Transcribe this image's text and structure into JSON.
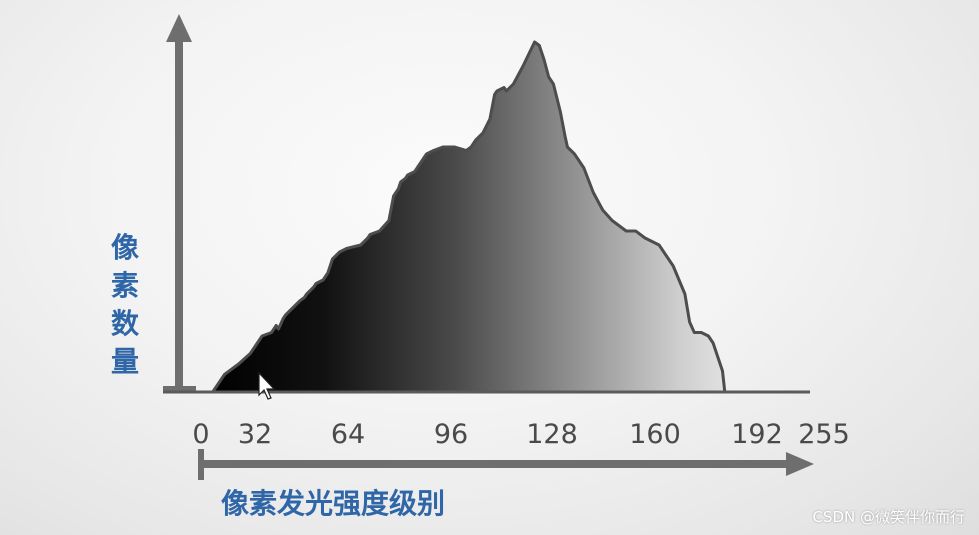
{
  "chart_data": {
    "type": "area",
    "ylabel": "像素数量",
    "xlabel": "像素发光强度级别",
    "tick_labels": [
      "0",
      "32",
      "64",
      "96",
      "128",
      "160",
      "192",
      "255"
    ],
    "xlim": [
      0,
      255
    ],
    "ylim": [
      0,
      100
    ],
    "grid": false,
    "fill": "gradient black to white",
    "x": [
      5,
      10,
      16,
      21,
      23,
      25,
      26,
      30,
      32,
      33,
      35,
      36,
      42,
      44,
      45,
      48,
      49,
      52,
      54,
      56,
      59,
      62,
      68,
      71,
      72,
      76,
      80,
      82,
      84,
      85,
      87,
      88,
      91,
      92,
      96,
      99,
      103,
      108,
      113,
      115,
      117,
      120,
      123,
      125,
      126,
      129,
      130,
      133,
      137,
      142,
      144,
      146,
      148,
      150,
      153,
      155,
      156,
      159,
      163,
      167,
      171,
      175,
      177,
      181,
      185,
      189,
      195,
      201,
      206,
      208,
      210,
      213,
      216,
      218,
      222,
      223
    ],
    "y": [
      0,
      5,
      8,
      11,
      13,
      15,
      16,
      17,
      19,
      18,
      21,
      22,
      26,
      27,
      28,
      30,
      31,
      32,
      34,
      38,
      40,
      41,
      42,
      44,
      45,
      46,
      49,
      56,
      58,
      60,
      61,
      62,
      63,
      64,
      68,
      69,
      70,
      70,
      69,
      70,
      72,
      74,
      78,
      85,
      86,
      87,
      86,
      88,
      93,
      100,
      99,
      95,
      90,
      88,
      80,
      73,
      70,
      68,
      64,
      57,
      52,
      49,
      48,
      46,
      46,
      44,
      42,
      36,
      28,
      20,
      17,
      17,
      16,
      14,
      6,
      0
    ],
    "colors": {
      "axis": "#6e6e6e",
      "outline": "#4d4d4d",
      "label": "#2f66a8",
      "tick": "#4a4a4a"
    }
  },
  "watermark": "CSDN @微笑伴你而行"
}
